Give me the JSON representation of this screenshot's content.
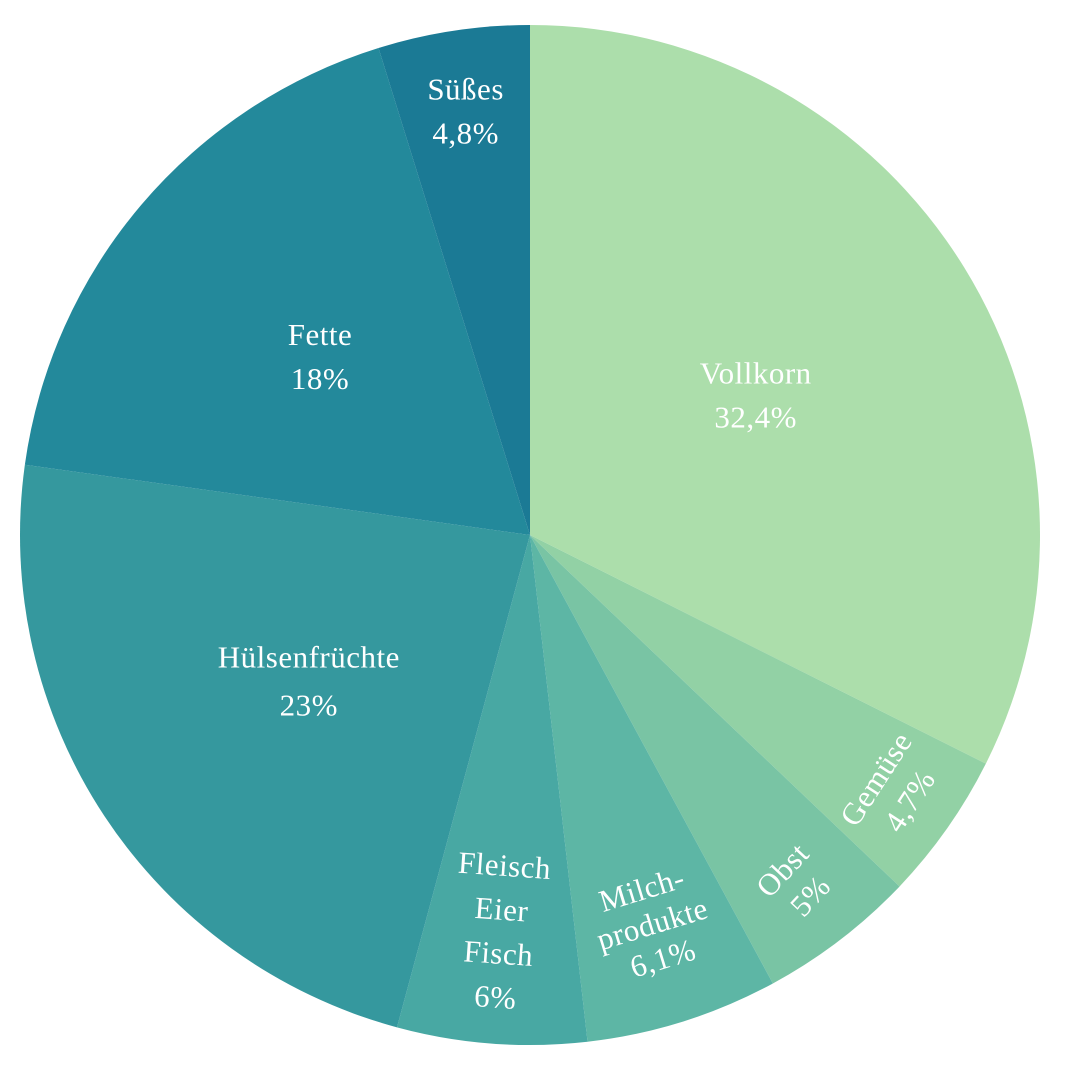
{
  "chart_data": {
    "type": "pie",
    "title": "",
    "start": "12 o'clock",
    "direction": "clockwise",
    "legend": "none",
    "slices": [
      {
        "name": "Vollkorn",
        "value": 32.4,
        "value_label": "32,4%",
        "color": "#acdeab",
        "label_lines": [
          "Vollkorn",
          "32,4%"
        ]
      },
      {
        "name": "Gemüse",
        "value": 4.7,
        "value_label": "4,7%",
        "color": "#92d1a5",
        "label_lines": [
          "Gemüse",
          "4,7%"
        ]
      },
      {
        "name": "Obst",
        "value": 5,
        "value_label": "5%",
        "color": "#79c4a4",
        "label_lines": [
          "Obst",
          "5%"
        ]
      },
      {
        "name": "Milchprodukte",
        "value": 6.1,
        "value_label": "6,1%",
        "color": "#5db6a5",
        "label_lines": [
          "Milch-",
          "produkte",
          "6,1%"
        ]
      },
      {
        "name": "Fleisch Eier Fisch",
        "value": 6,
        "value_label": "6%",
        "color": "#48a8a3",
        "label_lines": [
          "Fleisch",
          "Eier",
          "Fisch",
          "6%"
        ]
      },
      {
        "name": "Hülsenfrüchte",
        "value": 23,
        "value_label": "23%",
        "color": "#35989e",
        "label_lines": [
          "Hülsenfrüchte",
          "23%"
        ]
      },
      {
        "name": "Fette",
        "value": 18,
        "value_label": "18%",
        "color": "#23899b",
        "label_lines": [
          "Fette",
          "18%"
        ]
      },
      {
        "name": "Süßes",
        "value": 4.8,
        "value_label": "4,8%",
        "color": "#1b7a95",
        "label_lines": [
          "Süßes",
          "4,8%"
        ]
      }
    ]
  }
}
